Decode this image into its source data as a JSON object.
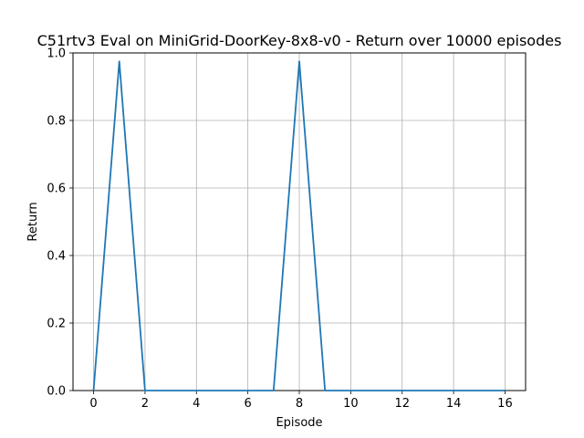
{
  "chart_data": {
    "type": "line",
    "title": "C51rtv3 Eval on MiniGrid-DoorKey-8x8-v0 - Return over 10000 episodes",
    "xlabel": "Episode",
    "ylabel": "Return",
    "xlim": [
      -0.8,
      16.8
    ],
    "ylim": [
      0,
      1.0
    ],
    "x_ticks": [
      "0",
      "2",
      "4",
      "6",
      "8",
      "10",
      "12",
      "14",
      "16"
    ],
    "y_ticks": [
      "0.0",
      "0.2",
      "0.4",
      "0.6",
      "0.8",
      "1.0"
    ],
    "grid": true,
    "series_color": "#1f77b4",
    "grid_color": "#b0b0b0",
    "x": [
      0,
      1,
      2,
      3,
      4,
      5,
      6,
      7,
      8,
      9,
      10,
      11,
      12,
      13,
      14,
      15,
      16
    ],
    "values": [
      0,
      0.975,
      0,
      0,
      0,
      0,
      0,
      0,
      0.975,
      0,
      0,
      0,
      0,
      0,
      0,
      0,
      0
    ]
  }
}
